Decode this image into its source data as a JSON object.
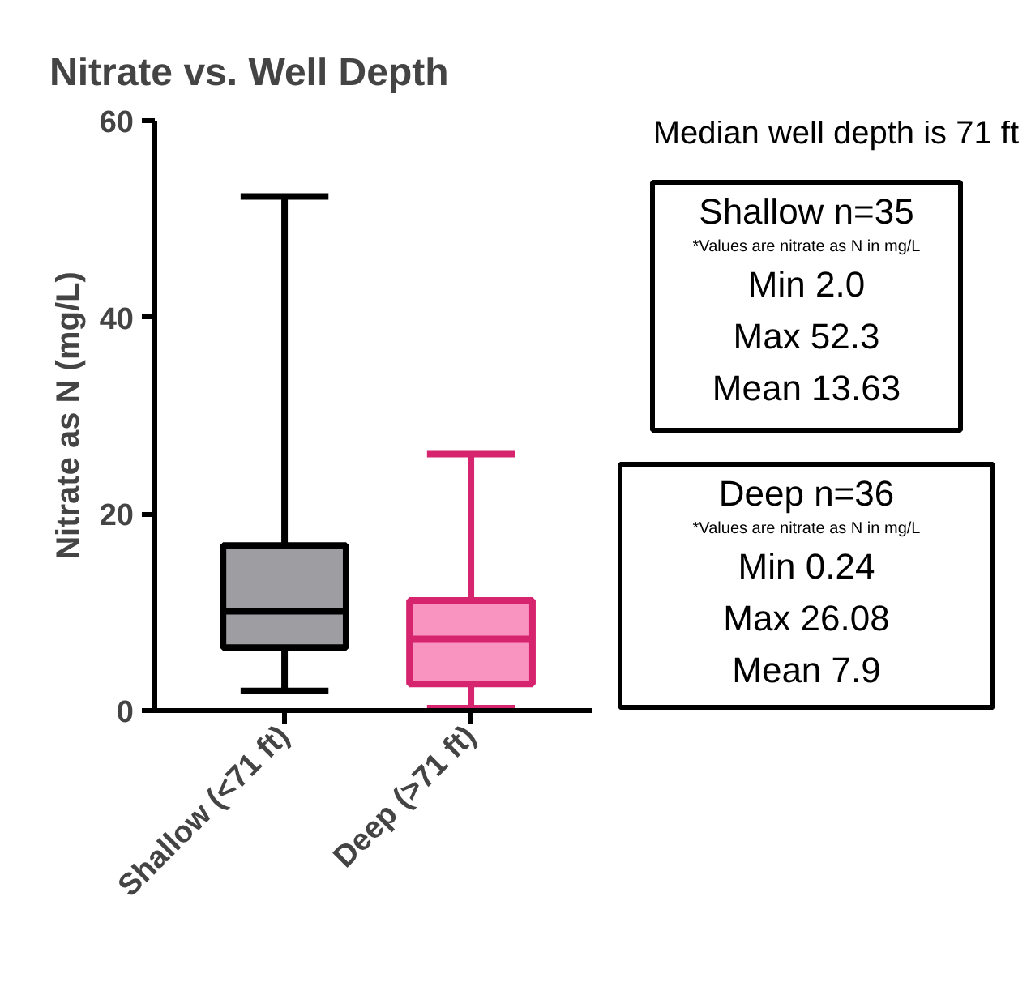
{
  "chart_data": {
    "type": "box",
    "title": "Nitrate vs. Well Depth",
    "ylabel": "Nitrate as N (mg/L)",
    "categories": [
      "Shallow (<71 ft)",
      "Deep (>71 ft)"
    ],
    "colors": [
      "#9e9ea2",
      "#f993c0"
    ],
    "boxes": [
      {
        "low": 2.0,
        "q1": 6.4,
        "median": 10.1,
        "q3": 16.8,
        "high": 52.3
      },
      {
        "low": 0.24,
        "q1": 2.7,
        "median": 7.3,
        "q3": 11.2,
        "high": 26.08
      }
    ],
    "ylim": [
      0,
      60
    ],
    "yticks": [
      0,
      20,
      40,
      60
    ],
    "grid": false,
    "annotations": [
      "Median well depth is 71 ft",
      "Shallow n=35",
      "*Values are nitrate as N in mg/L",
      "Min 2.0",
      "Max 52.3",
      "Mean 13.63",
      "Deep n=36",
      "*Values are nitrate as N in mg/L",
      "Min 0.24",
      "Max 26.08",
      "Mean 7.9"
    ]
  }
}
